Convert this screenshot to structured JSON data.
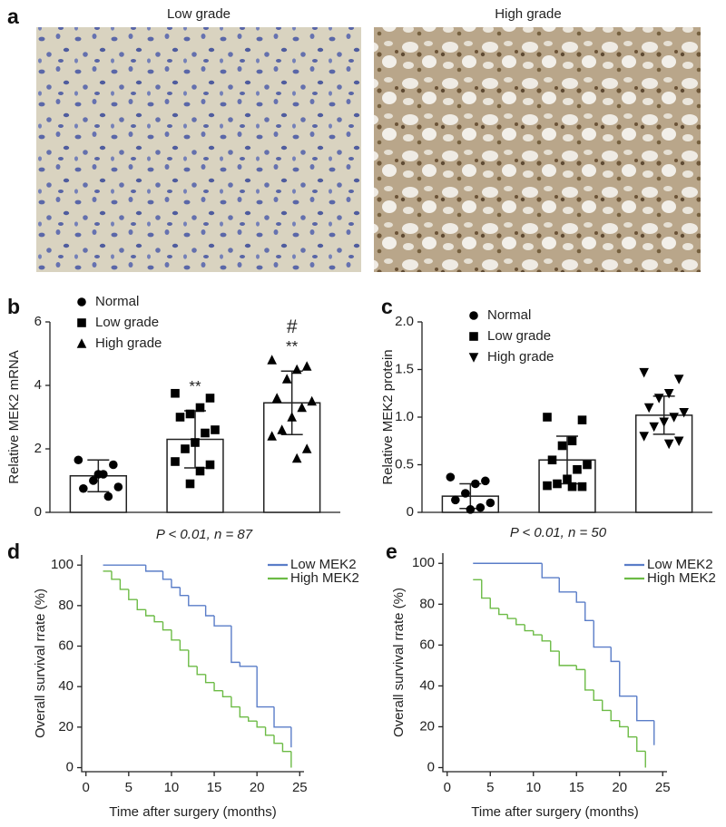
{
  "panel_a": {
    "label": "a",
    "images": [
      {
        "title": "Low grade"
      },
      {
        "title": "High grade"
      }
    ]
  },
  "chart_data": [
    {
      "type": "bar",
      "panel_label": "b",
      "y_label": "Relative MEK2 mRNA",
      "categories": [
        null,
        null,
        null
      ],
      "bar_color": "#ffffff",
      "marker_color": "#000000",
      "ylim": [
        0,
        6
      ],
      "yticks": [
        0,
        2,
        4,
        6
      ],
      "series": [
        {
          "name": "Normal",
          "marker": "circle",
          "mean": 1.15,
          "sd": 0.5,
          "points": [
            1.65,
            1.5,
            1.2,
            1.0,
            0.75,
            0.8,
            0.5,
            1.2
          ]
        },
        {
          "name": "Low grade",
          "marker": "square",
          "mean": 2.3,
          "sd": 0.9,
          "points": [
            3.75,
            3.6,
            3.3,
            3.1,
            3.0,
            2.6,
            2.5,
            2.2,
            2.0,
            1.6,
            1.5,
            1.3,
            0.9
          ]
        },
        {
          "name": "High grade",
          "marker": "triangle",
          "mean": 3.45,
          "sd": 1.0,
          "points": [
            4.8,
            4.6,
            4.5,
            4.2,
            3.6,
            3.5,
            3.3,
            3.0,
            2.6,
            2.4,
            2.0,
            1.7
          ]
        }
      ],
      "annotations": [
        {
          "category": 1,
          "text": "**"
        },
        {
          "category": 2,
          "text": "**"
        },
        {
          "category": 2,
          "text": "#"
        }
      ]
    },
    {
      "type": "bar",
      "panel_label": "c",
      "y_label": "Relative MEK2 protein",
      "categories": [
        null,
        null,
        null
      ],
      "bar_color": "#ffffff",
      "marker_color": "#000000",
      "ylim": [
        0,
        2
      ],
      "yticks": [
        0,
        0.5,
        {
          "value": 1,
          "label": "1.0"
        },
        1.5,
        {
          "value": 2,
          "label": "2.0"
        }
      ],
      "series": [
        {
          "name": "Normal",
          "marker": "circle",
          "mean": 0.17,
          "sd": 0.13,
          "points": [
            0.37,
            0.33,
            0.3,
            0.2,
            0.13,
            0.1,
            0.05,
            0.03
          ]
        },
        {
          "name": "Low grade",
          "marker": "square",
          "mean": 0.55,
          "sd": 0.25,
          "points": [
            1.0,
            0.97,
            0.75,
            0.7,
            0.55,
            0.5,
            0.45,
            0.35,
            0.3,
            0.28,
            0.27,
            0.27
          ]
        },
        {
          "name": "High grade",
          "marker": "triangle-down",
          "mean": 1.02,
          "sd": 0.2,
          "points": [
            1.47,
            1.4,
            1.25,
            1.2,
            1.1,
            1.05,
            1.0,
            0.95,
            0.9,
            0.8,
            0.75,
            0.72
          ]
        }
      ],
      "annotations": []
    },
    {
      "type": "step",
      "panel_label": "d",
      "title": "P < 0.01, n = 87",
      "x_label": "Time after surgery (months)",
      "y_label": "Overall survival rrate (%)",
      "xlim": [
        -0.5,
        25.5
      ],
      "ylim": [
        -2,
        105
      ],
      "xticks": [
        0,
        5,
        10,
        15,
        20,
        25
      ],
      "yticks": [
        0,
        20,
        40,
        60,
        80,
        100
      ],
      "series": [
        {
          "name": "Low MEK2",
          "color": "#5a7dc8",
          "x": [
            2,
            7,
            9,
            10,
            11,
            12,
            14,
            15,
            17,
            18,
            20,
            22,
            24
          ],
          "values": [
            100,
            97,
            93,
            89,
            85,
            80,
            75,
            70,
            52,
            50,
            30,
            20,
            10
          ]
        },
        {
          "name": "High MEK2",
          "color": "#6cbb45",
          "x": [
            2,
            3,
            4,
            5,
            6,
            7,
            8,
            9,
            10,
            11,
            12,
            13,
            14,
            15,
            16,
            17,
            18,
            19,
            20,
            21,
            22,
            23,
            24
          ],
          "values": [
            97,
            93,
            88,
            83,
            78,
            75,
            72,
            68,
            63,
            58,
            50,
            46,
            42,
            38,
            35,
            30,
            25,
            23,
            20,
            16,
            12,
            8,
            0
          ]
        }
      ]
    },
    {
      "type": "step",
      "panel_label": "e",
      "title": "P < 0.01, n = 50",
      "x_label": "Time after surgery (months)",
      "y_label": "Overall survival rrate (%)",
      "xlim": [
        -0.5,
        25.5
      ],
      "ylim": [
        -2,
        105
      ],
      "xticks": [
        0,
        5,
        10,
        15,
        20,
        25
      ],
      "yticks": [
        0,
        20,
        40,
        60,
        80,
        100
      ],
      "series": [
        {
          "name": "Low MEK2",
          "color": "#5a7dc8",
          "x": [
            3,
            11,
            13,
            15,
            16,
            17,
            19,
            20,
            22,
            24
          ],
          "values": [
            100,
            93,
            86,
            81,
            72,
            59,
            52,
            35,
            23,
            11
          ]
        },
        {
          "name": "High MEK2",
          "color": "#6cbb45",
          "x": [
            3,
            4,
            5,
            6,
            7,
            8,
            9,
            10,
            11,
            12,
            13,
            15,
            16,
            17,
            18,
            19,
            20,
            21,
            22,
            23
          ],
          "values": [
            92,
            83,
            78,
            75,
            73,
            70,
            67,
            65,
            62,
            57,
            50,
            48,
            38,
            33,
            28,
            23,
            20,
            15,
            8,
            0
          ]
        }
      ]
    }
  ]
}
